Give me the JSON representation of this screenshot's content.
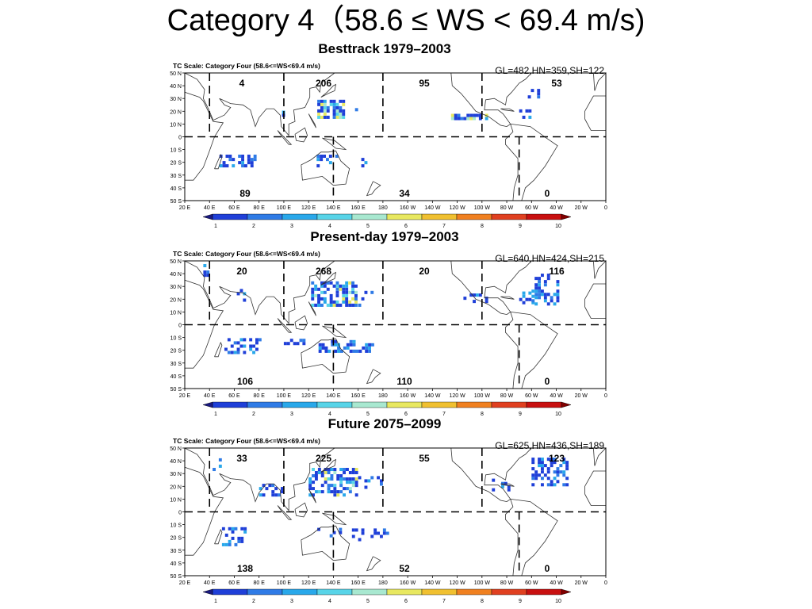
{
  "title": "Category 4（58.6 ≤ WS < 69.4 m/s)",
  "scale_label": "TC Scale: Category Four (58.6<=WS<69.4 m/s)",
  "lat_labels": [
    "50 N",
    "40 N",
    "30 N",
    "20 N",
    "10 N",
    "0",
    "10 S",
    "20 S",
    "30 S",
    "40 S",
    "50 S"
  ],
  "lon_labels": [
    "20 E",
    "40 E",
    "60 E",
    "80 E",
    "100 E",
    "120 E",
    "140 E",
    "160 E",
    "180",
    "160 W",
    "140 W",
    "120 W",
    "100 W",
    "80 W",
    "60 W",
    "40 W",
    "20 W",
    "0"
  ],
  "colorbar_ticks": [
    "1",
    "2",
    "3",
    "4",
    "5",
    "6",
    "7",
    "8",
    "9",
    "10"
  ],
  "colors": {
    "colorbar": [
      "#1f3fd8",
      "#2f7be6",
      "#29a8ea",
      "#58d4e8",
      "#a8e8d0",
      "#e8e860",
      "#f0c030",
      "#f08020",
      "#e04020",
      "#c81010"
    ],
    "shading": [
      "#1f3fd8",
      "#2f7be6",
      "#29a8ea",
      "#58d4e8",
      "#a8e8d0",
      "#e8e860"
    ],
    "divider": "#000000"
  },
  "panels": [
    {
      "title": "Besttrack 1979–2003",
      "stats": "GL=482,HN=359,SH=122",
      "counts": {
        "nio": "4",
        "wnp": "206",
        "enp": "95",
        "atl": "53",
        "sio": "89",
        "sp": "34",
        "sa": "0"
      }
    },
    {
      "title": "Present-day 1979–2003",
      "stats": "GL=640,HN=424,SH=215",
      "counts": {
        "nio": "20",
        "wnp": "268",
        "enp": "20",
        "atl": "116",
        "sio": "106",
        "sp": "110",
        "sa": "0"
      }
    },
    {
      "title": "Future 2075–2099",
      "stats": "GL=625,HN=436,SH=189",
      "counts": {
        "nio": "33",
        "wnp": "225",
        "enp": "55",
        "atl": "123",
        "sio": "138",
        "sp": "52",
        "sa": "0"
      }
    }
  ]
}
